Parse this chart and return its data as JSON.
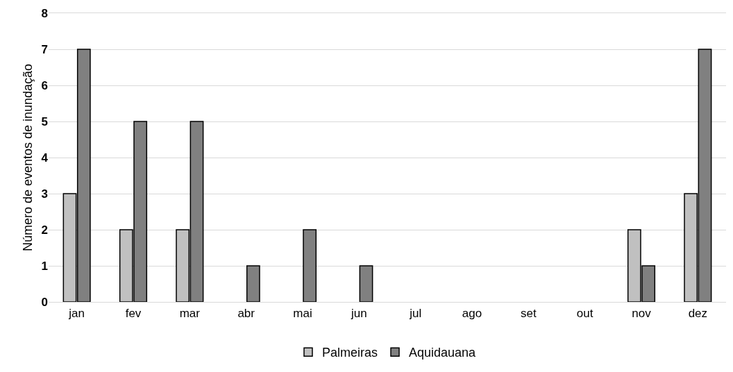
{
  "chart_data": {
    "type": "bar",
    "ylabel": "Número de eventos de inundação",
    "categories": [
      "jan",
      "fev",
      "mar",
      "abr",
      "mai",
      "jun",
      "jul",
      "ago",
      "set",
      "out",
      "nov",
      "dez"
    ],
    "series": [
      {
        "name": "Palmeiras",
        "color": "#c0c0c0",
        "values": [
          3,
          2,
          2,
          0,
          0,
          0,
          0,
          0,
          0,
          0,
          2,
          3
        ]
      },
      {
        "name": "Aquidauana",
        "color": "#808080",
        "values": [
          7,
          5,
          5,
          1,
          2,
          1,
          0,
          0,
          0,
          0,
          1,
          7
        ]
      }
    ],
    "ylim": [
      0,
      8
    ],
    "yticks": [
      0,
      1,
      2,
      3,
      4,
      5,
      6,
      7,
      8
    ],
    "grid": "y",
    "legend": "bottom"
  }
}
